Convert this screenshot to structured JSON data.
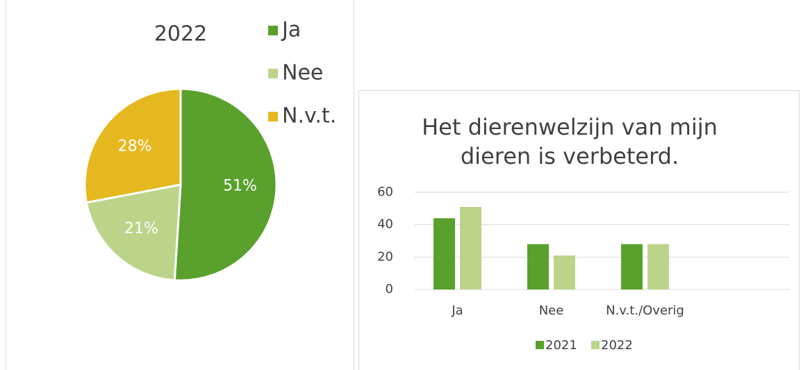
{
  "chart_data": [
    {
      "type": "pie",
      "title": "2022",
      "categories": [
        "Ja",
        "Nee",
        "N.v.t."
      ],
      "values": [
        51,
        21,
        28
      ],
      "value_labels": [
        "51%",
        "21%",
        "28%"
      ],
      "colors": [
        "#5aa02c",
        "#bcd48a",
        "#e6b820"
      ],
      "legend": "right"
    },
    {
      "type": "bar",
      "title": "Het dierenwelzijn van mijn dieren is verbeterd.",
      "categories": [
        "Ja",
        "Nee",
        "N.v.t./Overig",
        null
      ],
      "series": [
        {
          "name": "2021",
          "color": "#5aa02c",
          "values": [
            44,
            28,
            28,
            null
          ]
        },
        {
          "name": "2022",
          "color": "#bcd48a",
          "values": [
            51,
            21,
            28,
            null
          ]
        }
      ],
      "ylim": [
        0,
        60
      ],
      "yticks": [
        0,
        20,
        40,
        60
      ],
      "grid": true,
      "legend": "bottom"
    }
  ]
}
